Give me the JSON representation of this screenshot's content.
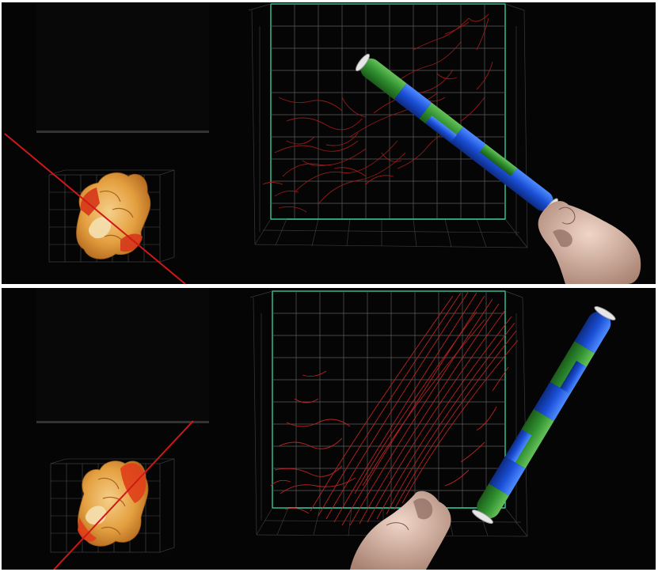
{
  "figure": {
    "panels": [
      {
        "id": "top",
        "rod_colors": [
          "#1a4fd6",
          "#2f8f2f"
        ],
        "shape_color": "#e89a3c",
        "highlight_color": "#d83a1a",
        "trace_color": "#b01c1c"
      },
      {
        "id": "bottom",
        "rod_colors": [
          "#1a4fd6",
          "#2f8f2f"
        ],
        "shape_color": "#e89a3c",
        "highlight_color": "#e0401a",
        "trace_color": "#c42424"
      }
    ],
    "colors": {
      "background": "#050505",
      "grid": "#6f6f6f",
      "grid_accent": "#3fd6a8",
      "laser": "#d01818",
      "skin": "#d8b8a8"
    }
  }
}
